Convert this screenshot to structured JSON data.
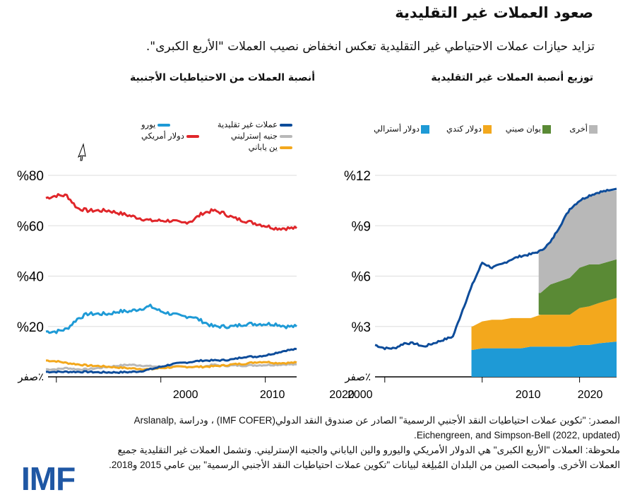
{
  "header": {
    "title": "صعود العملات غير التقليدية",
    "subtitle": "تزايد حيازات عملات الاحتياطي غير التقليدية تعكس انخفاض نصيب العملات \"الأربع الكبرى\"."
  },
  "colors": {
    "nontraditional": "#0d4c9a",
    "usd": "#e0262a",
    "euro": "#1e9ad6",
    "gbp": "#b8b8b8",
    "jpy": "#f3a81d",
    "aud": "#1e9ad6",
    "cad": "#f3a81d",
    "cny": "#5a8a35",
    "other": "#b8b8b8",
    "grid": "#dddddd"
  },
  "chart_data": [
    {
      "type": "line",
      "title": "أنصبة العملات من الاحتياطيات الأجنبية",
      "ylim": [
        0,
        80
      ],
      "yticks": [
        {
          "v": 0,
          "label": "صفر٪"
        },
        {
          "v": 20,
          "label": "%20"
        },
        {
          "v": 40,
          "label": "%40"
        },
        {
          "v": 60,
          "label": "%60"
        },
        {
          "v": 80,
          "label": "%80"
        }
      ],
      "xticks": [
        {
          "v": 2000,
          "label": ""
        },
        {
          "v": 2010,
          "label": "2000"
        },
        {
          "v": 2020,
          "label": "2010"
        }
      ],
      "x_after_label": "2020",
      "xlim": [
        1999,
        2023
      ],
      "grid": true,
      "legend_placement": "top",
      "x": [
        1999,
        2000,
        2001,
        2002,
        2003,
        2004,
        2005,
        2006,
        2007,
        2008,
        2009,
        2010,
        2011,
        2012,
        2013,
        2014,
        2015,
        2016,
        2017,
        2018,
        2019,
        2020,
        2021,
        2022,
        2023
      ],
      "series": [
        {
          "key": "usd",
          "name": "دولار أمريكي",
          "values": [
            71,
            72,
            72,
            67,
            66,
            66,
            66,
            65,
            64,
            63,
            62,
            62,
            62,
            61,
            62,
            65,
            66,
            65,
            63,
            62,
            61,
            60,
            59,
            59,
            59
          ]
        },
        {
          "key": "euro",
          "name": "يورو",
          "values": [
            18,
            18,
            19,
            23,
            25,
            25,
            25,
            26,
            26,
            27,
            28,
            26,
            25,
            24,
            24,
            22,
            20,
            20,
            20,
            21,
            21,
            21,
            21,
            20,
            20
          ]
        },
        {
          "key": "nontraditional",
          "name": "عملات غير تقليدية",
          "values": [
            2,
            2,
            2,
            2,
            2,
            1.8,
            1.8,
            1.8,
            1.9,
            2.2,
            3,
            4,
            5,
            5.5,
            6,
            6.5,
            6.5,
            6.6,
            7,
            8,
            8,
            8.5,
            9.5,
            10.5,
            11
          ]
        },
        {
          "key": "gbp",
          "name": "جنيه إسترليني",
          "values": [
            3,
            3,
            3.5,
            3,
            3,
            3.5,
            4,
            4.5,
            4.8,
            4.6,
            4.2,
            4,
            4,
            4,
            4,
            4,
            4.8,
            4.4,
            4.5,
            4.5,
            4.6,
            4.7,
            4.8,
            5,
            4.8
          ]
        },
        {
          "key": "jpy",
          "name": "ين ياباني",
          "values": [
            6.5,
            6.2,
            5.5,
            5,
            4.5,
            4.3,
            4,
            3.7,
            3.4,
            3.2,
            3,
            3.5,
            3.8,
            4,
            4,
            4,
            4.2,
            4.5,
            5,
            5.2,
            5.8,
            6,
            5.5,
            5.5,
            5.7
          ]
        }
      ]
    },
    {
      "type": "area",
      "title": "توزيع أنصبة العملات غير التقليدية",
      "ylim": [
        0,
        12
      ],
      "yticks": [
        {
          "v": 0,
          "label": "صفر٪"
        },
        {
          "v": 3,
          "label": "%3"
        },
        {
          "v": 6,
          "label": "%6"
        },
        {
          "v": 9,
          "label": "%9"
        },
        {
          "v": 12,
          "label": "%12"
        }
      ],
      "xticks": [
        {
          "v": 2000,
          "label": "2000"
        },
        {
          "v": 2010,
          "label": "2010"
        },
        {
          "v": 2020,
          "label": "2020"
        }
      ],
      "xlim": [
        1999,
        2023.8
      ],
      "grid": true,
      "legend_placement": "top",
      "line": {
        "key": "nontraditional",
        "x": [
          1999,
          2000,
          2001,
          2002,
          2003,
          2004,
          2005,
          2006,
          2007,
          2008,
          2009,
          2010,
          2011,
          2012,
          2013,
          2014,
          2015,
          2016,
          2017,
          2018,
          2019,
          2020,
          2021,
          2022,
          2023
        ],
        "values": [
          1.9,
          1.7,
          1.7,
          2.0,
          2.0,
          1.8,
          2.0,
          2.2,
          2.4,
          4.0,
          5.5,
          6.8,
          6.5,
          6.7,
          7.0,
          7.2,
          7.3,
          7.5,
          8.0,
          9.0,
          10.0,
          10.5,
          10.8,
          11.0,
          11.1
        ]
      },
      "stack_x": [
        2009,
        2010,
        2011,
        2012,
        2013,
        2014,
        2015,
        2016,
        2017,
        2018,
        2019,
        2020,
        2021,
        2022,
        2023
      ],
      "series": [
        {
          "key": "aud",
          "name": "دولار أسترالي",
          "values": [
            1.6,
            1.7,
            1.7,
            1.7,
            1.7,
            1.7,
            1.8,
            1.8,
            1.8,
            1.8,
            1.8,
            1.9,
            1.9,
            2.0,
            2.1
          ]
        },
        {
          "key": "cad",
          "name": "دولار كندي",
          "values": [
            1.4,
            1.6,
            1.7,
            1.7,
            1.8,
            1.8,
            1.7,
            1.9,
            1.9,
            1.9,
            1.9,
            2.2,
            2.3,
            2.4,
            2.6
          ]
        },
        {
          "key": "cny",
          "name": "يوان صيني",
          "values": [
            null,
            null,
            null,
            null,
            null,
            null,
            null,
            1.3,
            1.8,
            2.0,
            2.2,
            2.4,
            2.5,
            2.3,
            2.3
          ]
        },
        {
          "key": "other",
          "name": "أخرى",
          "values": [
            null,
            null,
            null,
            null,
            null,
            null,
            null,
            2.5,
            2.5,
            3.3,
            4.1,
            4.0,
            4.1,
            4.3,
            4.1
          ]
        }
      ]
    }
  ],
  "notes": {
    "source": "المصدر: \"تكوين عملات احتياطيات النقد الأجنبي الرسمية\" الصادر عن صندوق النقد الدولي(IMF COFER) ، ودراسة Arslanalp, Eichengreen, and Simpson-Bell (2022, updated).",
    "note": "ملحوظة: العملات \"الأربع الكبرى\" هي الدولار الأمريكي واليورو والين الياباني والجنيه الإسترليني. وتشمل العملات غير التقليدية جميع العملات الأخرى. وأصبحت الصين من البلدان المُبلِغة لبيانات \"تكوين عملات احتياطيات النقد الأجنبي الرسمية\" بين عامي 2015 و2018."
  },
  "logo": "IMF"
}
